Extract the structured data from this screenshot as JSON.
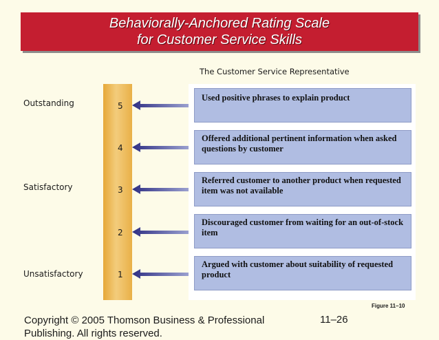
{
  "title": {
    "line1": "Behaviorally-Anchored Rating Scale",
    "line2": "for Customer Service Skills"
  },
  "column_header": "The Customer Service Representative",
  "levels": [
    "Outstanding",
    "Satisfactory",
    "Unsatisfactory"
  ],
  "scale": [
    "5",
    "4",
    "3",
    "2",
    "1"
  ],
  "anchors": [
    "Used positive phrases to explain product",
    "Offered additional pertinent information when asked questions by customer",
    "Referred customer to another product when requested item was not available",
    "Discouraged customer from waiting for an out-of-stock item",
    "Argued with customer about suitability of requested product"
  ],
  "figure_label": "Figure 11–10",
  "footer": {
    "copyright": "Copyright © 2005 Thomson Business & Professional Publishing. All rights reserved.",
    "page": "11–26"
  },
  "colors": {
    "banner": "#c41e30",
    "scale_bar": "#eebc5c",
    "anchor_box": "#b0bde2",
    "arrow": "#3a3a8c",
    "background": "#fdfbe8"
  }
}
